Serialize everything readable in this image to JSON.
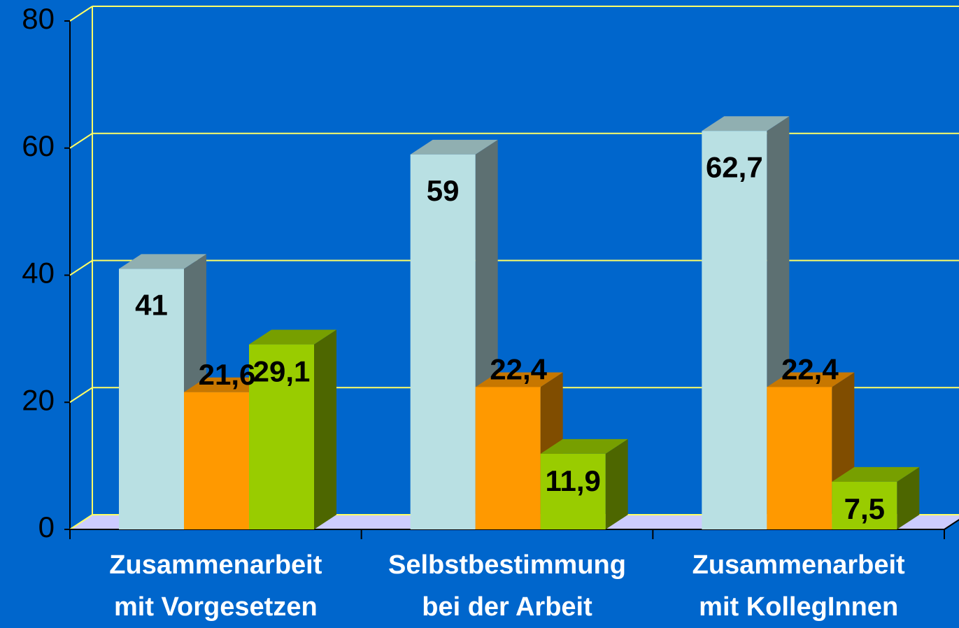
{
  "chart_data": {
    "type": "bar3d",
    "categories": [
      [
        "Zusammenarbeit",
        "mit Vorgesetzen"
      ],
      [
        "Selbstbestimmung",
        "bei der Arbeit"
      ],
      [
        "Zusammenarbeit",
        "mit KollegInnen"
      ]
    ],
    "series": [
      {
        "color": "#b9e0e3",
        "values": [
          41,
          59,
          62.7
        ],
        "value_labels": [
          "41",
          "59",
          "62,7"
        ]
      },
      {
        "color": "#ff9900",
        "values": [
          21.6,
          22.4,
          22.4
        ],
        "value_labels": [
          "21,6",
          "22,4",
          "22,4"
        ]
      },
      {
        "color": "#99cc00",
        "values": [
          29.1,
          11.9,
          7.5
        ],
        "value_labels": [
          "29,1",
          "11,9",
          "7,5"
        ]
      }
    ],
    "ylim": [
      0,
      80
    ],
    "yticks": [
      0,
      20,
      40,
      60,
      80
    ],
    "grid": true,
    "grid_color": "#ffff66",
    "background": "#0066cc",
    "floor_color": "#ccccff"
  }
}
